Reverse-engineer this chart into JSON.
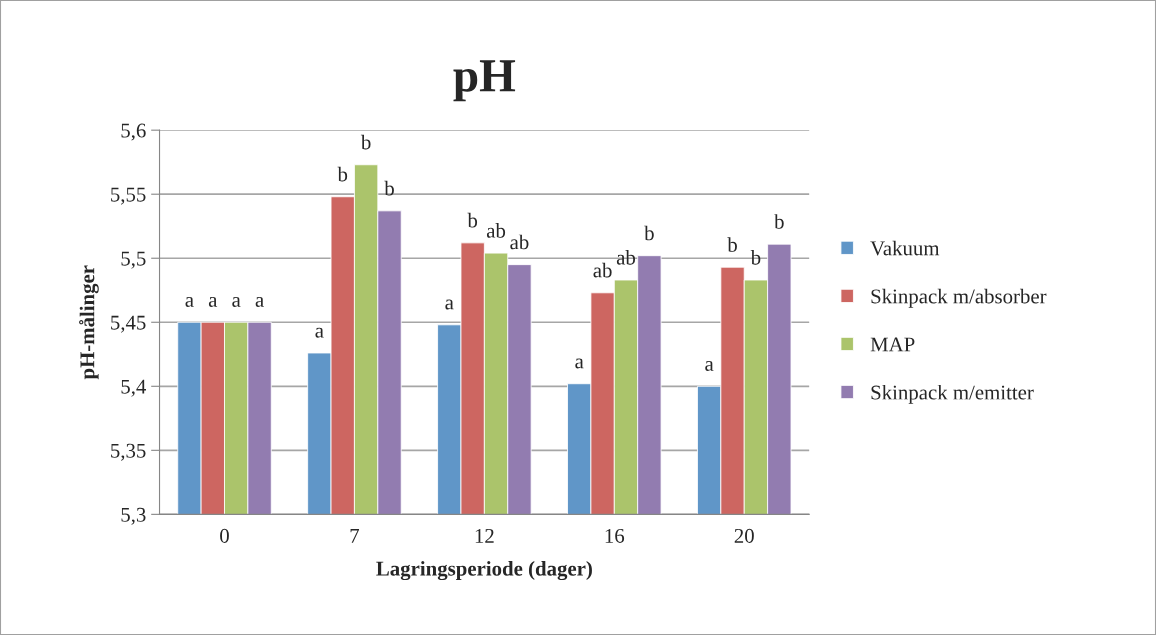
{
  "chart_data": {
    "type": "bar",
    "title": "pH",
    "xlabel": "Lagringsperiode (dager)",
    "ylabel": "pH-målinger",
    "categories": [
      "0",
      "7",
      "12",
      "16",
      "20"
    ],
    "series": [
      {
        "name": "Vakuum",
        "color": "#6096c8",
        "values": [
          5.45,
          5.426,
          5.448,
          5.402,
          5.4
        ],
        "value_labels": [
          "a",
          "a",
          "a",
          "a",
          "a"
        ]
      },
      {
        "name": "Skinpack m/absorber",
        "color": "#cd6661",
        "values": [
          5.45,
          5.548,
          5.512,
          5.473,
          5.493
        ],
        "value_labels": [
          "a",
          "b",
          "b",
          "ab",
          "b"
        ]
      },
      {
        "name": "MAP",
        "color": "#abc46b",
        "values": [
          5.45,
          5.573,
          5.504,
          5.483,
          5.483
        ],
        "value_labels": [
          "a",
          "b",
          "ab",
          "ab",
          "b"
        ]
      },
      {
        "name": "Skinpack m/emitter",
        "color": "#927cb0",
        "values": [
          5.45,
          5.537,
          5.495,
          5.502,
          5.511
        ],
        "value_labels": [
          "a",
          "b",
          "ab",
          "b",
          "b"
        ]
      }
    ],
    "ylim": [
      5.3,
      5.6
    ],
    "yticks": [
      {
        "value": 5.3,
        "label": "5,3"
      },
      {
        "value": 5.35,
        "label": "5,35"
      },
      {
        "value": 5.4,
        "label": "5,4"
      },
      {
        "value": 5.45,
        "label": "5,45"
      },
      {
        "value": 5.5,
        "label": "5,5"
      },
      {
        "value": 5.55,
        "label": "5,55"
      },
      {
        "value": 5.6,
        "label": "5,6"
      }
    ],
    "grid": "y",
    "legend": "right"
  }
}
